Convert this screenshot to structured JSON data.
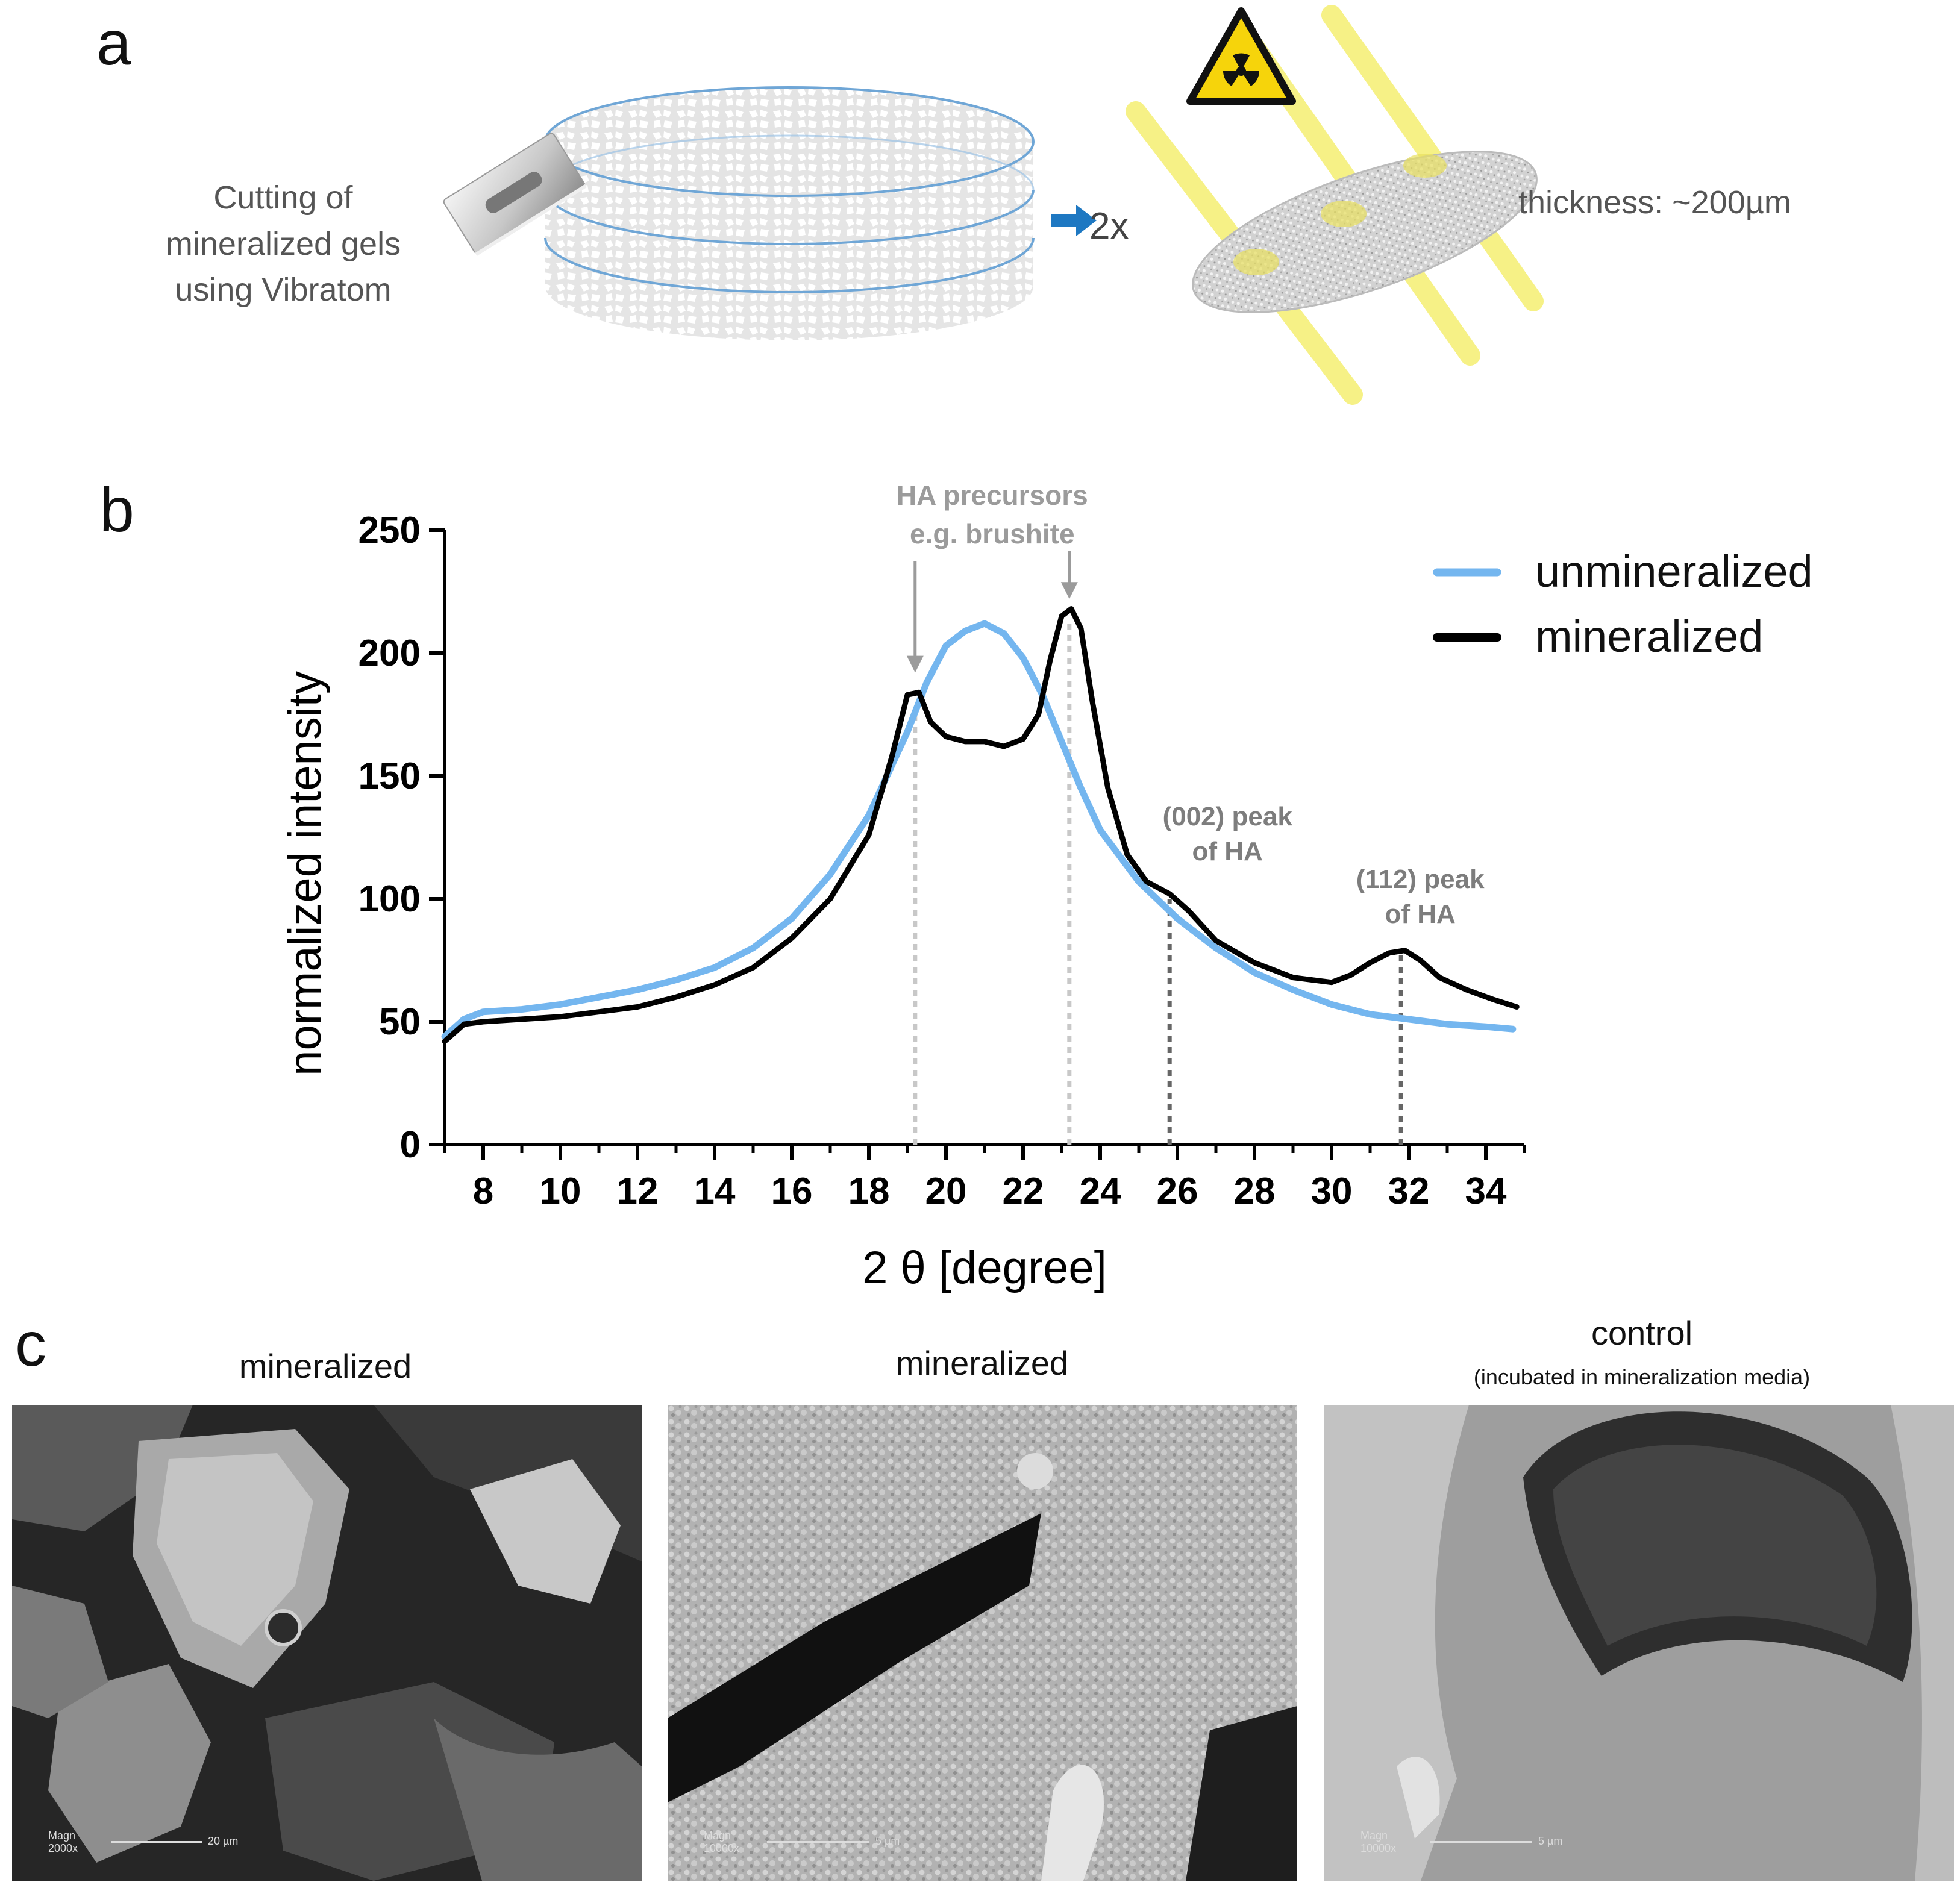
{
  "panels": {
    "a": {
      "letter": "a",
      "step_text_lines": [
        "Cutting of",
        "mineralized gels",
        "using Vibratom"
      ],
      "multiplier": "2x",
      "thickness_text": "thickness: ~200µm",
      "icons": [
        "razor-blade-icon",
        "radiation-hazard-icon",
        "arrow-right-icon"
      ],
      "colors": {
        "arrow": "#1e78c2",
        "beam": "#f5ef72",
        "hazard_bg": "#f6d40b"
      }
    },
    "b": {
      "letter": "b"
    },
    "c": {
      "letter": "c",
      "images": [
        {
          "title": "mineralized",
          "subtitle": "",
          "magnification": "2000x",
          "scale_bar": "20 µm"
        },
        {
          "title": "mineralized",
          "subtitle": "",
          "magnification": "10000x",
          "scale_bar": "5 µm"
        },
        {
          "title": "control",
          "subtitle": "(incubated in mineralization media)",
          "magnification": "10000x",
          "scale_bar": "5 µm"
        }
      ],
      "scale_prefix": "Magn"
    }
  },
  "chart_data": {
    "type": "line",
    "title": "",
    "xlabel": "2 θ [degree]",
    "ylabel": "normalized intensity",
    "xlim": [
      7,
      35
    ],
    "ylim": [
      0,
      250
    ],
    "xticks": [
      8,
      10,
      12,
      14,
      16,
      18,
      20,
      22,
      24,
      26,
      28,
      30,
      32,
      34
    ],
    "yticks": [
      0,
      50,
      100,
      150,
      200,
      250
    ],
    "grid": false,
    "legend_position": "top-right",
    "series": [
      {
        "name": "unmineralized",
        "color": "#74b6ef",
        "x": [
          7,
          7.5,
          8,
          9,
          10,
          11,
          12,
          13,
          14,
          15,
          16,
          17,
          18,
          18.5,
          19,
          19.5,
          20,
          20.5,
          21,
          21.5,
          22,
          22.5,
          23,
          23.5,
          24,
          25,
          26,
          27,
          28,
          29,
          30,
          31,
          32,
          33,
          34,
          34.7
        ],
        "y": [
          44,
          51,
          54,
          55,
          57,
          60,
          63,
          67,
          72,
          80,
          92,
          110,
          134,
          151,
          168,
          188,
          203,
          209,
          212,
          208,
          198,
          183,
          164,
          145,
          128,
          107,
          92,
          80,
          70,
          63,
          57,
          53,
          51,
          49,
          48,
          47
        ]
      },
      {
        "name": "mineralized",
        "color": "#000000",
        "x": [
          7,
          7.5,
          8,
          9,
          10,
          11,
          12,
          13,
          14,
          15,
          16,
          17,
          18,
          18.6,
          19,
          19.3,
          19.6,
          20,
          20.5,
          21,
          21.5,
          22,
          22.4,
          22.7,
          23,
          23.25,
          23.5,
          23.8,
          24.2,
          24.7,
          25.2,
          25.8,
          26.3,
          27,
          28,
          29,
          30,
          30.5,
          31,
          31.5,
          31.9,
          32.3,
          32.8,
          33.5,
          34.2,
          34.8
        ],
        "y": [
          42,
          49,
          50,
          51,
          52,
          54,
          56,
          60,
          65,
          72,
          84,
          100,
          126,
          158,
          183,
          184,
          172,
          166,
          164,
          164,
          162,
          165,
          175,
          197,
          215,
          218,
          210,
          180,
          145,
          118,
          107,
          102,
          95,
          83,
          74,
          68,
          66,
          69,
          74,
          78,
          79,
          75,
          68,
          63,
          59,
          56
        ]
      }
    ],
    "annotations": [
      {
        "text_lines": [
          "HA precursors",
          "e.g. brushite"
        ],
        "x_markers": [
          19.2,
          23.2
        ],
        "arrows_to": [
          [
            19.2,
            192
          ],
          [
            23.2,
            222
          ]
        ]
      },
      {
        "text_lines": [
          "(002) peak",
          "of HA"
        ],
        "x_marker": 25.8,
        "marker_top": 100
      },
      {
        "text_lines": [
          "(112) peak",
          "of HA"
        ],
        "x_marker": 31.8,
        "marker_top": 78
      }
    ]
  }
}
